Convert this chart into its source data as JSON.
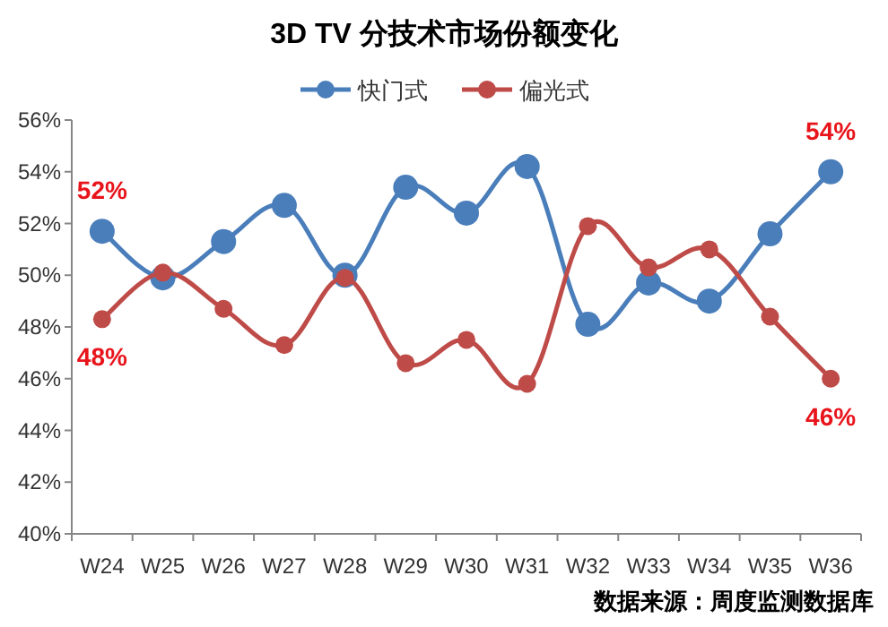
{
  "chart_data": {
    "type": "line",
    "title": "3D TV 分技术市场份额变化",
    "categories": [
      "W24",
      "W25",
      "W26",
      "W27",
      "W28",
      "W29",
      "W30",
      "W31",
      "W32",
      "W33",
      "W34",
      "W35",
      "W36"
    ],
    "series": [
      {
        "name": "快门式",
        "color": "#4a7ebb",
        "values": [
          51.7,
          49.9,
          51.3,
          52.7,
          50.0,
          53.4,
          52.4,
          54.2,
          48.1,
          49.7,
          49.0,
          51.6,
          54.0
        ]
      },
      {
        "name": "偏光式",
        "color": "#be4b48",
        "values": [
          48.3,
          50.1,
          48.7,
          47.3,
          49.9,
          46.6,
          47.5,
          45.8,
          51.9,
          50.3,
          51.0,
          48.4,
          46.0
        ]
      }
    ],
    "ylim": [
      40,
      56
    ],
    "yticks": [
      {
        "value": 40,
        "label": "40%"
      },
      {
        "value": 42,
        "label": "42%"
      },
      {
        "value": 44,
        "label": "44%"
      },
      {
        "value": 46,
        "label": "46%"
      },
      {
        "value": 48,
        "label": "48%"
      },
      {
        "value": 50,
        "label": "50%"
      },
      {
        "value": 52,
        "label": "52%"
      },
      {
        "value": 54,
        "label": "54%"
      },
      {
        "value": 56,
        "label": "56%"
      }
    ],
    "marker": "circle",
    "line_style": "solid",
    "legend": "top",
    "annotations": [
      {
        "text": "52%",
        "x": "W24",
        "y": 51.7
      },
      {
        "text": "48%",
        "x": "W24",
        "y": 48.3
      },
      {
        "text": "54%",
        "x": "W36",
        "y": 54.0
      },
      {
        "text": "46%",
        "x": "W36",
        "y": 46.0
      },
      "数据来源：周度监测数据库"
    ]
  }
}
